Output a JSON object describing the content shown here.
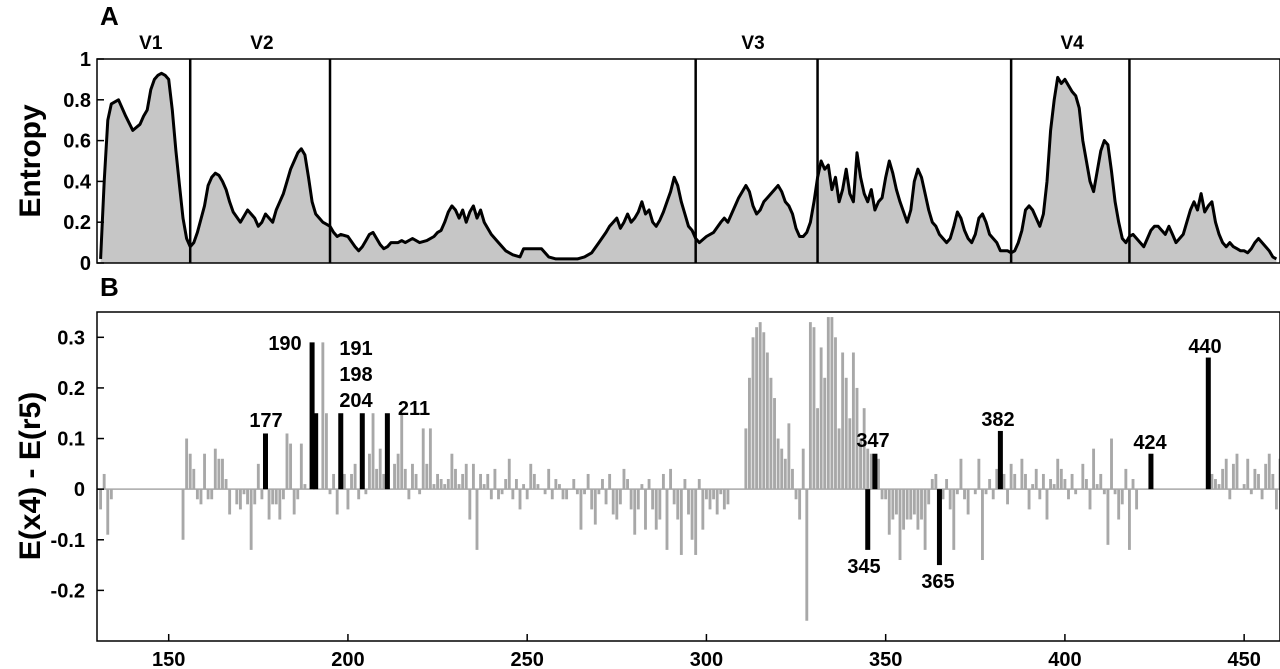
{
  "chart_data": [
    {
      "panel": "A",
      "type": "area",
      "ylabel": "Entropy",
      "xlim": [
        130,
        460
      ],
      "ylim": [
        0,
        1
      ],
      "y_ticks": [
        "0",
        "0.2",
        "0.4",
        "0.6",
        "0.8",
        "1"
      ],
      "x_ticks": [],
      "regions": [
        {
          "name": "V1",
          "label_x": 145
        },
        {
          "name": "V2",
          "label_x": 176
        },
        {
          "name": "V3",
          "label_x": 313
        },
        {
          "name": "V4",
          "label_x": 402
        }
      ],
      "boundaries": [
        156,
        195,
        297,
        331,
        385,
        418
      ],
      "fill_color": "#c6c6c6",
      "line_color": "#000000",
      "x": [
        131,
        132,
        133,
        134,
        136,
        138,
        140,
        142,
        143,
        144,
        145,
        146,
        147,
        148,
        149,
        150,
        151,
        152,
        153,
        154,
        155,
        156,
        157,
        158,
        160,
        161,
        162,
        163,
        164,
        165,
        166,
        167,
        168,
        170,
        172,
        174,
        175,
        176,
        177,
        178,
        179,
        180,
        181,
        182,
        183,
        184,
        185,
        186,
        187,
        188,
        189,
        190,
        191,
        192,
        193,
        194,
        195,
        196,
        197,
        198,
        200,
        202,
        203,
        204,
        205,
        206,
        207,
        208,
        209,
        210,
        211,
        212,
        213,
        214,
        215,
        216,
        218,
        220,
        222,
        224,
        225,
        226,
        227,
        228,
        229,
        230,
        231,
        232,
        233,
        234,
        235,
        236,
        237,
        238,
        240,
        242,
        244,
        246,
        248,
        249,
        250,
        252,
        254,
        256,
        258,
        260,
        262,
        264,
        266,
        268,
        270,
        272,
        273,
        274,
        275,
        276,
        277,
        278,
        279,
        280,
        281,
        282,
        283,
        284,
        285,
        286,
        287,
        288,
        289,
        290,
        291,
        292,
        293,
        294,
        295,
        296,
        297,
        298,
        300,
        302,
        304,
        305,
        306,
        307,
        308,
        309,
        310,
        311,
        312,
        313,
        314,
        315,
        316,
        317,
        318,
        319,
        320,
        321,
        322,
        323,
        324,
        325,
        326,
        327,
        328,
        329,
        330,
        331,
        332,
        333,
        334,
        335,
        336,
        337,
        338,
        339,
        340,
        341,
        342,
        343,
        344,
        345,
        346,
        347,
        348,
        349,
        350,
        351,
        352,
        353,
        354,
        355,
        356,
        357,
        358,
        359,
        360,
        361,
        362,
        363,
        364,
        365,
        366,
        367,
        368,
        369,
        370,
        371,
        372,
        373,
        374,
        375,
        376,
        377,
        378,
        379,
        380,
        381,
        382,
        383,
        384,
        385,
        386,
        387,
        388,
        389,
        390,
        391,
        392,
        393,
        394,
        395,
        396,
        397,
        398,
        399,
        400,
        401,
        402,
        403,
        404,
        405,
        406,
        407,
        408,
        409,
        410,
        411,
        412,
        413,
        414,
        415,
        416,
        417,
        418,
        419,
        420,
        421,
        422,
        423,
        424,
        425,
        426,
        427,
        428,
        429,
        430,
        431,
        432,
        433,
        434,
        435,
        436,
        437,
        438,
        439,
        440,
        441,
        442,
        443,
        444,
        445,
        446,
        447,
        448,
        449,
        450,
        451,
        452,
        453,
        454,
        455,
        456,
        457,
        458,
        459
      ],
      "y": [
        0.02,
        0.4,
        0.7,
        0.78,
        0.8,
        0.72,
        0.65,
        0.68,
        0.72,
        0.75,
        0.85,
        0.9,
        0.92,
        0.93,
        0.92,
        0.9,
        0.75,
        0.55,
        0.38,
        0.22,
        0.12,
        0.08,
        0.1,
        0.15,
        0.28,
        0.38,
        0.42,
        0.44,
        0.43,
        0.4,
        0.36,
        0.3,
        0.25,
        0.2,
        0.26,
        0.22,
        0.18,
        0.2,
        0.24,
        0.22,
        0.2,
        0.26,
        0.3,
        0.34,
        0.4,
        0.46,
        0.5,
        0.54,
        0.56,
        0.53,
        0.42,
        0.3,
        0.24,
        0.22,
        0.2,
        0.19,
        0.18,
        0.15,
        0.13,
        0.14,
        0.13,
        0.08,
        0.06,
        0.08,
        0.11,
        0.14,
        0.15,
        0.12,
        0.09,
        0.07,
        0.08,
        0.1,
        0.1,
        0.1,
        0.11,
        0.1,
        0.12,
        0.1,
        0.11,
        0.13,
        0.15,
        0.16,
        0.2,
        0.25,
        0.28,
        0.26,
        0.22,
        0.26,
        0.2,
        0.25,
        0.28,
        0.22,
        0.26,
        0.2,
        0.14,
        0.1,
        0.06,
        0.04,
        0.03,
        0.07,
        0.07,
        0.07,
        0.07,
        0.03,
        0.02,
        0.02,
        0.02,
        0.02,
        0.03,
        0.05,
        0.1,
        0.15,
        0.18,
        0.2,
        0.22,
        0.17,
        0.2,
        0.24,
        0.2,
        0.22,
        0.25,
        0.3,
        0.24,
        0.26,
        0.2,
        0.18,
        0.21,
        0.25,
        0.3,
        0.35,
        0.42,
        0.38,
        0.3,
        0.24,
        0.18,
        0.16,
        0.12,
        0.1,
        0.13,
        0.15,
        0.2,
        0.22,
        0.2,
        0.24,
        0.28,
        0.32,
        0.35,
        0.38,
        0.35,
        0.28,
        0.24,
        0.26,
        0.3,
        0.32,
        0.34,
        0.36,
        0.38,
        0.35,
        0.3,
        0.28,
        0.24,
        0.17,
        0.13,
        0.13,
        0.15,
        0.2,
        0.3,
        0.42,
        0.5,
        0.46,
        0.48,
        0.36,
        0.42,
        0.3,
        0.36,
        0.46,
        0.34,
        0.3,
        0.54,
        0.42,
        0.34,
        0.3,
        0.36,
        0.26,
        0.3,
        0.32,
        0.42,
        0.5,
        0.44,
        0.36,
        0.3,
        0.25,
        0.2,
        0.26,
        0.4,
        0.46,
        0.42,
        0.34,
        0.26,
        0.2,
        0.18,
        0.14,
        0.12,
        0.1,
        0.12,
        0.18,
        0.25,
        0.22,
        0.16,
        0.12,
        0.1,
        0.14,
        0.22,
        0.24,
        0.2,
        0.14,
        0.12,
        0.1,
        0.06,
        0.06,
        0.06,
        0.05,
        0.06,
        0.1,
        0.16,
        0.26,
        0.28,
        0.26,
        0.22,
        0.18,
        0.24,
        0.4,
        0.65,
        0.8,
        0.91,
        0.88,
        0.9,
        0.87,
        0.84,
        0.82,
        0.76,
        0.6,
        0.5,
        0.4,
        0.35,
        0.45,
        0.55,
        0.6,
        0.58,
        0.45,
        0.3,
        0.2,
        0.12,
        0.1,
        0.13,
        0.14,
        0.12,
        0.1,
        0.08,
        0.12,
        0.16,
        0.18,
        0.18,
        0.16,
        0.14,
        0.18,
        0.14,
        0.1,
        0.12,
        0.14,
        0.2,
        0.26,
        0.3,
        0.26,
        0.34,
        0.25,
        0.28,
        0.3,
        0.2,
        0.14,
        0.1,
        0.08,
        0.1,
        0.08,
        0.07,
        0.06,
        0.06,
        0.05,
        0.07,
        0.1,
        0.12,
        0.1,
        0.08,
        0.06,
        0.03,
        0.02
      ]
    },
    {
      "panel": "B",
      "type": "bar",
      "ylabel": "E(x4) - E(r5)",
      "xlim": [
        130,
        460
      ],
      "ylim": [
        -0.3,
        0.35
      ],
      "x_ticks": [
        "150",
        "200",
        "250",
        "300",
        "350",
        "400",
        "450"
      ],
      "y_ticks": [
        "-0.2",
        "-0.1",
        "0",
        "0.1",
        "0.2",
        "0.3"
      ],
      "bar_color": "#a8a8a8",
      "highlight_color": "#000000",
      "baseline_color": "#a8a8a8",
      "series": [
        {
          "values": [
            -0.04,
            0.03,
            -0.09,
            -0.02,
            0.0,
            0.0,
            0.0,
            0.0,
            0.0,
            0.0,
            0.0,
            0.0,
            0.0,
            0.0,
            0.0,
            0.0,
            0.0,
            0.0,
            0.0,
            0.0,
            0.0,
            0.0,
            0.0,
            -0.1,
            0.1,
            0.07,
            0.04,
            -0.02,
            -0.03,
            0.07,
            -0.02,
            -0.02,
            0.08,
            0.06,
            0.06,
            0.02,
            -0.05,
            0.0,
            -0.03,
            -0.04,
            -0.01,
            -0.03,
            -0.12,
            -0.03,
            0.05,
            -0.02,
            0.06,
            -0.06,
            -0.03,
            -0.03,
            -0.06,
            -0.02,
            0.11,
            0.09,
            -0.05,
            -0.02,
            0.09,
            0.01,
            0.0,
            0.05,
            0.05,
            0.0,
            0.29,
            0.15,
            -0.01,
            0.03,
            -0.05,
            0.04,
            0.03,
            -0.04,
            0.03,
            0.05,
            -0.02,
            0.07,
            -0.01,
            0.07,
            0.15,
            0.04,
            0.08,
            0.03,
            0.09,
            0.0,
            0.05,
            0.07,
            0.15,
            0.04,
            -0.02,
            0.05,
            0.03,
            -0.01,
            0.12,
            0.05,
            0.12,
            0.01,
            0.03,
            0.02,
            0.01,
            0.02,
            0.07,
            0.04,
            0.01,
            0.03,
            0.05,
            -0.06,
            0.05,
            -0.12,
            0.03,
            0.01,
            0.03,
            -0.02,
            0.04,
            -0.02,
            -0.01,
            0.02,
            0.06,
            -0.02,
            0.02,
            -0.04,
            0.01,
            -0.02,
            0.05,
            0.03,
            0.01,
            0.0,
            -0.01,
            0.04,
            -0.02,
            0.02,
            0.01,
            -0.02,
            -0.02,
            0.0,
            0.02,
            -0.01,
            -0.08,
            -0.01,
            0.03,
            -0.04,
            -0.07,
            -0.01,
            0.02,
            -0.03,
            0.03,
            -0.05,
            -0.06,
            -0.03,
            0.04,
            0.02,
            -0.04,
            -0.09,
            -0.04,
            0.01,
            -0.08,
            0.02,
            -0.04,
            -0.08,
            -0.06,
            0.03,
            -0.12,
            0.04,
            -0.03,
            -0.06,
            -0.13,
            0.02,
            -0.05,
            -0.1,
            -0.13,
            0.02,
            -0.08,
            -0.02,
            -0.04,
            -0.02,
            -0.05,
            -0.01,
            -0.04,
            -0.03,
            0.0,
            0.0,
            0.0,
            0.0,
            0.12,
            0.22,
            0.3,
            0.32,
            0.33,
            0.31,
            0.27,
            0.22,
            0.18,
            0.1,
            0.08,
            0.06,
            0.13,
            0.04,
            -0.02,
            -0.06,
            0.08,
            -0.26,
            0.33,
            0.32,
            0.16,
            0.28,
            0.22,
            0.34,
            0.34,
            0.3,
            0.12,
            0.27,
            0.22,
            0.14,
            0.27,
            0.2,
            0.1,
            0.16,
            0.08,
            0.07,
            0.03,
            0.06,
            -0.02,
            -0.02,
            -0.09,
            -0.06,
            -0.05,
            -0.14,
            -0.08,
            -0.06,
            -0.06,
            -0.05,
            -0.08,
            -0.06,
            -0.12,
            -0.03,
            0.02,
            0.03,
            -0.04,
            -0.02,
            0.02,
            -0.04,
            -0.12,
            -0.01,
            0.06,
            -0.02,
            -0.05,
            0.0,
            -0.01,
            0.06,
            -0.14,
            -0.01,
            0.02,
            -0.02,
            0.04,
            0.01,
            0.03,
            -0.03,
            0.05,
            0.03,
            0.0,
            0.06,
            0.03,
            -0.04,
            0.01,
            0.04,
            -0.02,
            0.03,
            -0.06,
            0.02,
            0.01,
            0.06,
            0.04,
            0.02,
            -0.02,
            0.03,
            -0.01,
            0.0,
            0.05,
            0.02,
            -0.04,
            0.08,
            0.01,
            0.03,
            -0.01,
            -0.11,
            0.1,
            -0.01,
            -0.06,
            -0.03,
            0.04,
            -0.12,
            0.02,
            -0.04,
            0.0,
            0.0,
            0.0,
            0.0,
            0.0,
            0.0,
            0.0,
            0.0,
            0.0,
            0.0,
            0.0,
            0.0,
            0.0,
            0.0,
            0.0,
            0.0,
            0.0,
            0.0,
            0.0,
            0.06,
            0.03,
            0.02,
            0.01,
            0.04,
            0.06,
            -0.02,
            0.05,
            0.07,
            0.0,
            0.01,
            0.06,
            -0.01,
            0.04,
            0.03,
            -0.02,
            0.05,
            0.07,
            0.03,
            -0.04,
            0.06,
            0.04,
            -0.03,
            0.02,
            0.05,
            -0.02,
            0.03,
            0.04,
            -0.02,
            0.04,
            -0.06,
            0.03,
            -0.11,
            -0.03,
            0.03,
            -0.04,
            -0.05,
            0.02,
            0.03,
            -0.04,
            -0.02,
            -0.04,
            -0.08,
            0.01,
            -0.04,
            0.01,
            -0.02,
            -0.05,
            -0.03,
            0.06
          ]
        }
      ],
      "x_start": 131,
      "highlights": [
        {
          "x": 177,
          "value": 0.11,
          "label": "177"
        },
        {
          "x": 190,
          "value": 0.29,
          "label": "190"
        },
        {
          "x": 191,
          "value": 0.15,
          "label": "191"
        },
        {
          "x": 198,
          "value": 0.15,
          "label": "198"
        },
        {
          "x": 204,
          "value": 0.15,
          "label": "204"
        },
        {
          "x": 211,
          "value": 0.15,
          "label": "211"
        },
        {
          "x": 345,
          "value": -0.12,
          "label": "345"
        },
        {
          "x": 347,
          "value": 0.07,
          "label": "347"
        },
        {
          "x": 365,
          "value": -0.15,
          "label": "365"
        },
        {
          "x": 382,
          "value": 0.115,
          "label": "382"
        },
        {
          "x": 424,
          "value": 0.07,
          "label": "424"
        },
        {
          "x": 440,
          "value": 0.26,
          "label": "440"
        }
      ]
    }
  ]
}
